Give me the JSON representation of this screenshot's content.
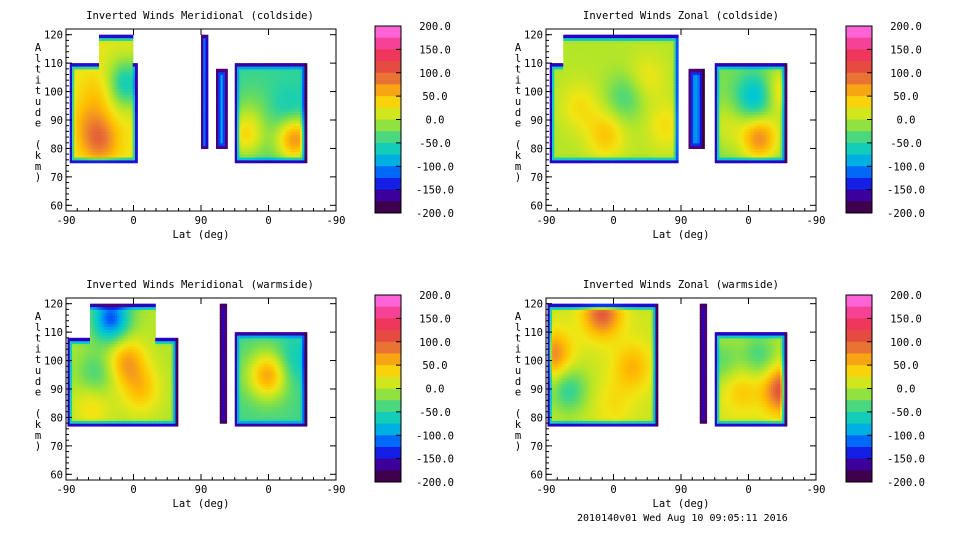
{
  "footer": "2010140v01 Wed Aug 10 09:05:11 2016",
  "chart_data": [
    {
      "type": "heatmap",
      "title": "Inverted Winds Meridional (coldside)",
      "xlabel": "Lat (deg)",
      "ylabel": "Altitude (km)",
      "x_tick_labels": [
        "-90",
        "0",
        "90",
        "0",
        "-90"
      ],
      "yticks": [
        60,
        70,
        80,
        90,
        100,
        110,
        120
      ],
      "ylim": [
        58,
        122
      ],
      "colorbar": {
        "min": -200,
        "max": 200,
        "labels": [
          "200.0",
          "150.0",
          "100.0",
          "50.0",
          "0.0",
          "-50.0",
          "-100.0",
          "-150.0",
          "-200.0"
        ]
      },
      "regions": [
        {
          "name": "left block",
          "x_range": [
            -85,
            5
          ],
          "alt_range": [
            75,
            110
          ],
          "top_ext": [
            -45,
            0,
            120
          ],
          "mean_value": 20,
          "features": [
            {
              "x": -45,
              "alt": 100,
              "value": 45
            },
            {
              "x": -10,
              "alt": 103,
              "value": -65
            },
            {
              "x": -60,
              "alt": 90,
              "value": 45
            },
            {
              "x": 20,
              "alt": 88,
              "value": 30
            },
            {
              "x": -45,
              "alt": 83,
              "value": 85
            }
          ]
        },
        {
          "name": "thin band 1",
          "x_range": [
            90,
            100
          ],
          "alt_range": [
            80,
            120
          ],
          "mean_value": -70
        },
        {
          "name": "thin band 2",
          "x_range": [
            110,
            125
          ],
          "alt_range": [
            80,
            108
          ],
          "mean_value": -90
        },
        {
          "name": "right block",
          "x_range": [
            135,
            230
          ],
          "alt_range": [
            75,
            110
          ],
          "mean_value": -45,
          "features": [
            {
              "x": 160,
              "alt": 95,
              "value": -30
            },
            {
              "x": 210,
              "alt": 92,
              "value": -80
            },
            {
              "x": 215,
              "alt": 84,
              "value": 80
            },
            {
              "x": 150,
              "alt": 85,
              "value": 30
            }
          ]
        }
      ]
    },
    {
      "type": "heatmap",
      "title": "Inverted Winds Zonal (coldside)",
      "xlabel": "Lat (deg)",
      "ylabel": "Altitude (km)",
      "x_tick_labels": [
        "-90",
        "0",
        "90",
        "0",
        "-90"
      ],
      "yticks": [
        60,
        70,
        80,
        90,
        100,
        110,
        120
      ],
      "ylim": [
        58,
        122
      ],
      "colorbar": {
        "min": -200,
        "max": 200,
        "labels": [
          "200.0",
          "150.0",
          "100.0",
          "50.0",
          "0.0",
          "-50.0",
          "-100.0",
          "-150.0",
          "-200.0"
        ]
      },
      "regions": [
        {
          "name": "left block",
          "x_range": [
            -85,
            87
          ],
          "alt_range": [
            75,
            110
          ],
          "top_ext": [
            -68,
            87,
            120
          ],
          "mean_value": 0,
          "features": [
            {
              "x": 15,
              "alt": 98,
              "value": -40
            },
            {
              "x": -45,
              "alt": 95,
              "value": 30
            },
            {
              "x": 45,
              "alt": 105,
              "value": 25
            },
            {
              "x": -10,
              "alt": 85,
              "value": 45
            },
            {
              "x": 70,
              "alt": 88,
              "value": 30
            }
          ]
        },
        {
          "name": "thin band 1",
          "x_range": [
            100,
            120
          ],
          "alt_range": [
            80,
            108
          ],
          "mean_value": -100
        },
        {
          "name": "right block",
          "x_range": [
            135,
            230
          ],
          "alt_range": [
            75,
            110
          ],
          "mean_value": -20,
          "features": [
            {
              "x": 190,
              "alt": 98,
              "value": -90
            },
            {
              "x": 195,
              "alt": 84,
              "value": 75
            },
            {
              "x": 225,
              "alt": 100,
              "value": 40
            },
            {
              "x": 150,
              "alt": 88,
              "value": 10
            }
          ]
        }
      ]
    },
    {
      "type": "heatmap",
      "title": "Inverted Winds Meridional (warmside)",
      "xlabel": "Lat (deg)",
      "ylabel": "Altitude (km)",
      "x_tick_labels": [
        "-90",
        "0",
        "90",
        "0",
        "-90"
      ],
      "yticks": [
        60,
        70,
        80,
        90,
        100,
        110,
        120
      ],
      "ylim": [
        58,
        122
      ],
      "colorbar": {
        "min": -200,
        "max": 200,
        "labels": [
          "200.0",
          "150.0",
          "100.0",
          "50.0",
          "0.0",
          "-50.0",
          "-100.0",
          "-150.0",
          "-200.0"
        ]
      },
      "regions": [
        {
          "name": "left block",
          "x_range": [
            -88,
            58
          ],
          "alt_range": [
            77,
            108
          ],
          "top_ext": [
            -58,
            30,
            120
          ],
          "mean_value": 0,
          "features": [
            {
              "x": -10,
              "alt": 100,
              "value": 65
            },
            {
              "x": -50,
              "alt": 95,
              "value": -45
            },
            {
              "x": 10,
              "alt": 90,
              "value": 45
            },
            {
              "x": -55,
              "alt": 85,
              "value": 35
            },
            {
              "x": -30,
              "alt": 115,
              "value": -120
            }
          ]
        },
        {
          "name": "thin band 1",
          "x_range": [
            115,
            125
          ],
          "alt_range": [
            78,
            120
          ],
          "mean_value": -130
        },
        {
          "name": "right block",
          "x_range": [
            135,
            230
          ],
          "alt_range": [
            77,
            110
          ],
          "mean_value": -40,
          "features": [
            {
              "x": 180,
              "alt": 95,
              "value": 60
            },
            {
              "x": 150,
              "alt": 95,
              "value": -30
            },
            {
              "x": 215,
              "alt": 100,
              "value": -70
            }
          ]
        }
      ]
    },
    {
      "type": "heatmap",
      "title": "Inverted Winds Zonal (warmside)",
      "xlabel": "Lat (deg)",
      "ylabel": "Altitude (km)",
      "x_tick_labels": [
        "-90",
        "0",
        "90",
        "0",
        "-90"
      ],
      "yticks": [
        60,
        70,
        80,
        90,
        100,
        110,
        120
      ],
      "ylim": [
        58,
        122
      ],
      "colorbar": {
        "min": -200,
        "max": 200,
        "labels": [
          "200.0",
          "150.0",
          "100.0",
          "50.0",
          "0.0",
          "-50.0",
          "-100.0",
          "-150.0",
          "-200.0"
        ]
      },
      "regions": [
        {
          "name": "left block",
          "x_range": [
            -88,
            58
          ],
          "alt_range": [
            77,
            110
          ],
          "top_ext": [
            -88,
            58,
            120
          ],
          "mean_value": 10,
          "features": [
            {
              "x": -15,
              "alt": 117,
              "value": 100
            },
            {
              "x": 25,
              "alt": 98,
              "value": 55
            },
            {
              "x": -60,
              "alt": 90,
              "value": -50
            },
            {
              "x": -80,
              "alt": 102,
              "value": 80
            },
            {
              "x": 0,
              "alt": 85,
              "value": 30
            }
          ]
        },
        {
          "name": "thin band 1",
          "x_range": [
            115,
            125
          ],
          "alt_range": [
            78,
            120
          ],
          "mean_value": -130
        },
        {
          "name": "right block",
          "x_range": [
            135,
            230
          ],
          "alt_range": [
            77,
            110
          ],
          "mean_value": 10,
          "features": [
            {
              "x": 170,
              "alt": 90,
              "value": 45
            },
            {
              "x": 225,
              "alt": 90,
              "value": 110
            },
            {
              "x": 195,
              "alt": 102,
              "value": -40
            },
            {
              "x": 145,
              "alt": 100,
              "value": -30
            }
          ]
        }
      ]
    }
  ]
}
